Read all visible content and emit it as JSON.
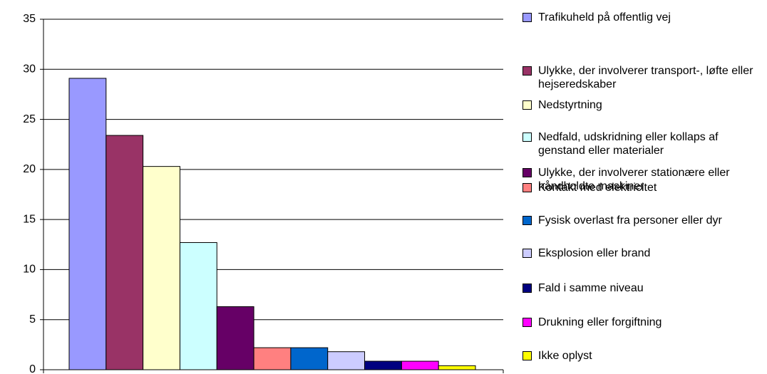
{
  "chart_data": {
    "type": "bar",
    "ylim": [
      0,
      35
    ],
    "yticks": [
      0,
      5,
      10,
      15,
      20,
      25,
      30,
      35
    ],
    "grid": true,
    "legend": "right",
    "series": [
      {
        "name": "Trafikuheld på offentlig vej",
        "color": "#9999ff",
        "values": [
          29.1
        ]
      },
      {
        "name": "Ulykke, der involverer transport-, løfte eller hejseredskaber",
        "color": "#993366",
        "values": [
          23.4
        ]
      },
      {
        "name": "Nedstyrtning",
        "color": "#ffffcc",
        "values": [
          20.3
        ]
      },
      {
        "name": "Nedfald, udskridning eller kollaps af genstand eller materialer",
        "color": "#ccffff",
        "values": [
          12.7
        ]
      },
      {
        "name": "Ulykke, der involverer stationære eller håndholdte maskiner",
        "color": "#660066",
        "values": [
          6.3
        ]
      },
      {
        "name": "Kontakt med elektricitet",
        "color": "#ff8080",
        "values": [
          2.2
        ]
      },
      {
        "name": "Fysisk overlast fra personer eller dyr",
        "color": "#0066cc",
        "values": [
          2.2
        ]
      },
      {
        "name": "Eksplosion eller brand",
        "color": "#ccccff",
        "values": [
          1.8
        ]
      },
      {
        "name": "Fald i samme niveau",
        "color": "#000080",
        "values": [
          0.85
        ]
      },
      {
        "name": "Drukning eller forgiftning",
        "color": "#ff00ff",
        "values": [
          0.85
        ]
      },
      {
        "name": "Ikke oplyst",
        "color": "#ffff00",
        "values": [
          0.4
        ]
      }
    ]
  }
}
